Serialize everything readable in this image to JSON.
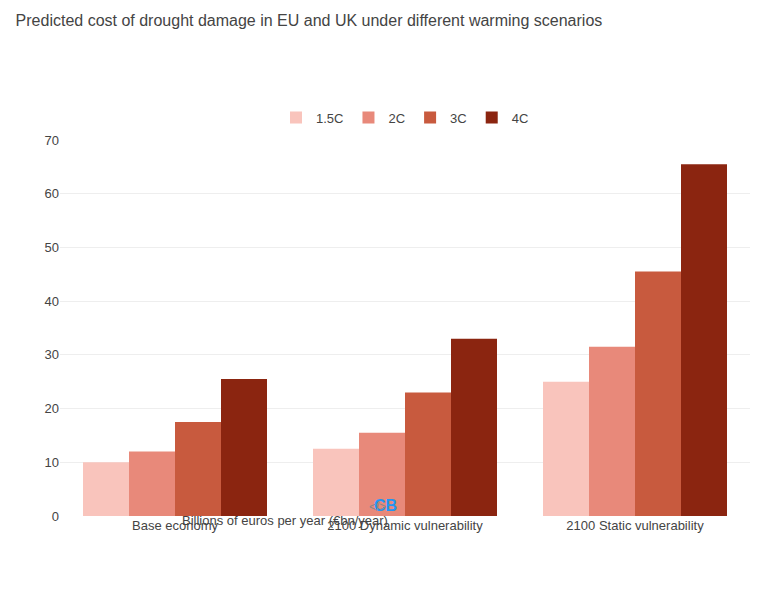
{
  "chart_data": {
    "type": "bar",
    "title": "Predicted cost of drought damage in EU and UK under different warming scenarios",
    "subtitle": "Billions of euros per year (€bn/year)",
    "categories": [
      "Base economy",
      "2100 Dynamic vulnerability",
      "2100 Static vulnerability"
    ],
    "series": [
      {
        "name": "1.5C",
        "color": "#f9c4bc",
        "values": [
          10,
          12.5,
          25
        ]
      },
      {
        "name": "2C",
        "color": "#e8897a",
        "values": [
          12,
          15.5,
          31.5
        ]
      },
      {
        "name": "3C",
        "color": "#c85a3e",
        "values": [
          17.5,
          23,
          45.5
        ]
      },
      {
        "name": "4C",
        "color": "#8b2510",
        "values": [
          25.5,
          33,
          65.5
        ]
      }
    ],
    "ylim": [
      0,
      70
    ],
    "yticks": [
      0,
      10,
      20,
      30,
      40,
      50,
      60,
      70
    ],
    "grid": true,
    "legend": "top",
    "annotations": [
      {
        "text": "CB",
        "color": "#2196F3"
      },
      {
        "text": "</>",
        "color": "#888888"
      }
    ]
  }
}
